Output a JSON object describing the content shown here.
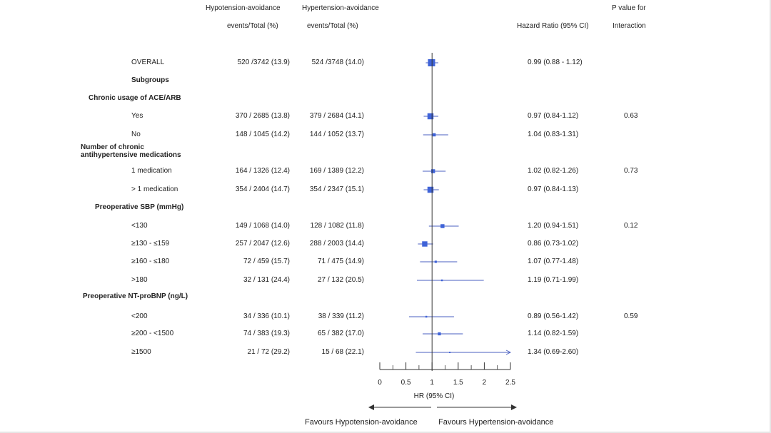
{
  "headers": {
    "group1_line1": "Hypotension-avoidance",
    "group1_line2": "events/Total  (%)",
    "group2_line1": "Hypertension-avoidance",
    "group2_line2": "events/Total  (%)",
    "hr": "Hazard Ratio (95% CI)",
    "p_line1": "P value  for",
    "p_line2": "Interaction"
  },
  "chart_data": {
    "type": "forest",
    "x_axis": {
      "label": "HR (95% CI)",
      "ticks": [
        "0",
        "0.5",
        "1",
        "1.5",
        "2",
        "2.5"
      ],
      "tick_values": [
        0,
        0.5,
        1,
        1.5,
        2,
        2.5
      ],
      "range": [
        0,
        2.5
      ],
      "reference_line": 1
    },
    "favours_left": "Favours Hypotension-avoidance",
    "favours_right": "Favours Hypertension-avoidance",
    "rows": [
      {
        "kind": "data",
        "label": "OVERALL",
        "g1": "520 /3742 (13.9)",
        "g2": "524 /3748 (14.0)",
        "hr_text": "0.99 (0.88 - 1.12)",
        "p": "",
        "hr": 0.99,
        "lo": 0.88,
        "hi": 1.12,
        "weight": 1.0
      },
      {
        "kind": "header",
        "label": "Subgroups",
        "level": 1
      },
      {
        "kind": "header",
        "label": "Chronic usage  of  ACE/ARB",
        "level": 0
      },
      {
        "kind": "data",
        "label": "Yes",
        "g1": "370 / 2685 (13.8)",
        "g2": "379 / 2684 (14.1)",
        "hr_text": "0.97 (0.84-1.12)",
        "p": "0.63",
        "hr": 0.97,
        "lo": 0.84,
        "hi": 1.12,
        "weight": 0.72
      },
      {
        "kind": "data",
        "label": "No",
        "g1": "148 / 1045 (14.2)",
        "g2": "144 / 1052 (13.7)",
        "hr_text": "1.04 (0.83-1.31)",
        "p": "",
        "hr": 1.04,
        "lo": 0.83,
        "hi": 1.31,
        "weight": 0.2
      },
      {
        "kind": "header2",
        "label": "Number of chronic",
        "label2": "antihypertensive  medications",
        "level": 0
      },
      {
        "kind": "data",
        "label": "1 medication",
        "g1": "164 / 1326 (12.4)",
        "g2": "169 / 1389 (12.2)",
        "hr_text": "1.02 (0.82-1.26)",
        "p": "0.73",
        "hr": 1.02,
        "lo": 0.82,
        "hi": 1.26,
        "weight": 0.3
      },
      {
        "kind": "data",
        "label": "> 1 medication",
        "g1": "354 / 2404 (14.7)",
        "g2": "354 / 2347 (15.1)",
        "hr_text": "0.97 (0.84-1.13)",
        "p": "",
        "hr": 0.97,
        "lo": 0.84,
        "hi": 1.13,
        "weight": 0.72
      },
      {
        "kind": "header",
        "label": "Preoperative SBP (mmHg)",
        "level": 1
      },
      {
        "kind": "data",
        "label": "<130",
        "g1": "149 / 1068 (14.0)",
        "g2": "128 / 1082 (11.8)",
        "hr_text": "1.20 (0.94-1.51)",
        "p": "0.12",
        "hr": 1.2,
        "lo": 0.94,
        "hi": 1.51,
        "weight": 0.3
      },
      {
        "kind": "data",
        "label": "≥130 - ≤159",
        "g1": "257 / 2047 (12.6)",
        "g2": "288 / 2003 (14.4)",
        "hr_text": "0.86 (0.73-1.02)",
        "p": "",
        "hr": 0.86,
        "lo": 0.73,
        "hi": 1.02,
        "weight": 0.55
      },
      {
        "kind": "data",
        "label": "≥160 - ≤180",
        "g1": "72 / 459 (15.7)",
        "g2": "71 / 475 (14.9)",
        "hr_text": "1.07 (0.77-1.48)",
        "p": "",
        "hr": 1.07,
        "lo": 0.77,
        "hi": 1.48,
        "weight": 0.1
      },
      {
        "kind": "data",
        "label": ">180",
        "g1": "32 / 131 (24.4)",
        "g2": "27 / 132 (20.5)",
        "hr_text": "1.19 (0.71-1.99)",
        "p": "",
        "hr": 1.19,
        "lo": 0.71,
        "hi": 1.99,
        "weight": 0.06
      },
      {
        "kind": "header",
        "label": "Preoperative NT-proBNP (ng/L)",
        "level": 0
      },
      {
        "kind": "data",
        "label": "<200",
        "g1": "34 / 336 (10.1)",
        "g2": "38 / 339 (11.2)",
        "hr_text": "0.89 (0.56-1.42)",
        "p": "0.59",
        "hr": 0.89,
        "lo": 0.56,
        "hi": 1.42,
        "weight": 0.06
      },
      {
        "kind": "data",
        "label": "≥200  - <1500",
        "g1": "74 / 383 (19.3)",
        "g2": "65 / 382 (17.0)",
        "hr_text": "1.14 (0.82-1.59)",
        "p": "",
        "hr": 1.14,
        "lo": 0.82,
        "hi": 1.59,
        "weight": 0.18
      },
      {
        "kind": "data",
        "label": "≥1500",
        "g1": "21 / 72 (29.2)",
        "g2": "15 / 68 (22.1)",
        "hr_text": "1.34 (0.69-2.60)",
        "p": "",
        "hr": 1.34,
        "lo": 0.69,
        "hi": 2.6,
        "weight": 0.04,
        "arrow_right": true
      }
    ]
  },
  "colors": {
    "marker": "#3f63d8",
    "ci_line": "#4a5fc0",
    "axis": "#333333",
    "text": "#222222"
  }
}
